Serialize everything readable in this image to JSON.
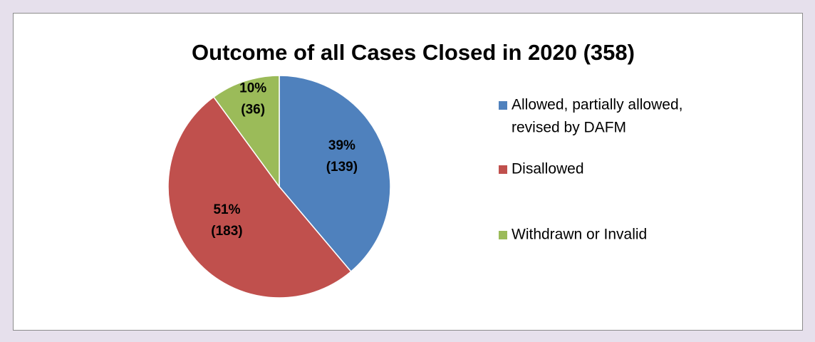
{
  "chart_data": {
    "type": "pie",
    "title": "Outcome of all Cases Closed in 2020 (358)",
    "categories": [
      "Allowed, partially allowed, revised by DAFM",
      "Disallowed",
      "Withdrawn or Invalid"
    ],
    "legend_lines": [
      [
        "Allowed, partially allowed,",
        "revised by DAFM"
      ],
      [
        "Disallowed"
      ],
      [
        "Withdrawn or Invalid"
      ]
    ],
    "values": [
      139,
      183,
      36
    ],
    "value_labels": [
      [
        "39%",
        "(139)"
      ],
      [
        "51%",
        "(183)"
      ],
      [
        "10%",
        "(36)"
      ]
    ],
    "colors": [
      "#4f81bd",
      "#c0504d",
      "#9bbb59"
    ],
    "legend": "right"
  }
}
